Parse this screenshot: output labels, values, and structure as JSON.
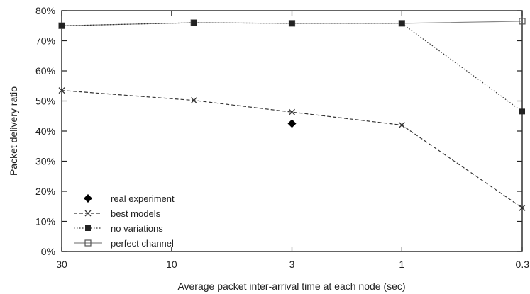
{
  "chart_data": {
    "type": "line",
    "xlabel": "Average packet inter-arrival time at each node (sec)",
    "ylabel": "Packet delivery ratio",
    "x_scale": "log-reversed",
    "x_ticks": [
      "30",
      "10",
      "3",
      "1",
      "0.3"
    ],
    "x_tick_values": [
      30,
      10,
      3,
      1,
      0.3
    ],
    "y_ticks": [
      "0%",
      "10%",
      "20%",
      "30%",
      "40%",
      "50%",
      "60%",
      "70%",
      "80%"
    ],
    "ylim": [
      0,
      80
    ],
    "xlim": [
      30,
      0.3
    ],
    "grid": false,
    "legend_position": "bottom-left",
    "series": [
      {
        "name": "real experiment",
        "style": "marker-only",
        "marker": "diamond",
        "points": [
          {
            "x": 3,
            "y": 42.5
          }
        ]
      },
      {
        "name": "best models",
        "style": "dashed",
        "marker": "x",
        "points": [
          {
            "x": 30,
            "y": 53.5
          },
          {
            "x": 8,
            "y": 50.2
          },
          {
            "x": 3,
            "y": 46.3
          },
          {
            "x": 1,
            "y": 42.0
          },
          {
            "x": 0.3,
            "y": 14.5
          }
        ]
      },
      {
        "name": "no variations",
        "style": "dotted",
        "marker": "filled-square",
        "points": [
          {
            "x": 30,
            "y": 75.0
          },
          {
            "x": 8,
            "y": 76.0
          },
          {
            "x": 3,
            "y": 75.8
          },
          {
            "x": 1,
            "y": 75.8
          },
          {
            "x": 0.3,
            "y": 46.5
          }
        ]
      },
      {
        "name": "perfect channel",
        "style": "solid-light",
        "marker": "open-square",
        "points": [
          {
            "x": 30,
            "y": 75.0
          },
          {
            "x": 8,
            "y": 76.0
          },
          {
            "x": 3,
            "y": 75.8
          },
          {
            "x": 1,
            "y": 75.8
          },
          {
            "x": 0.3,
            "y": 76.5
          }
        ]
      }
    ]
  }
}
